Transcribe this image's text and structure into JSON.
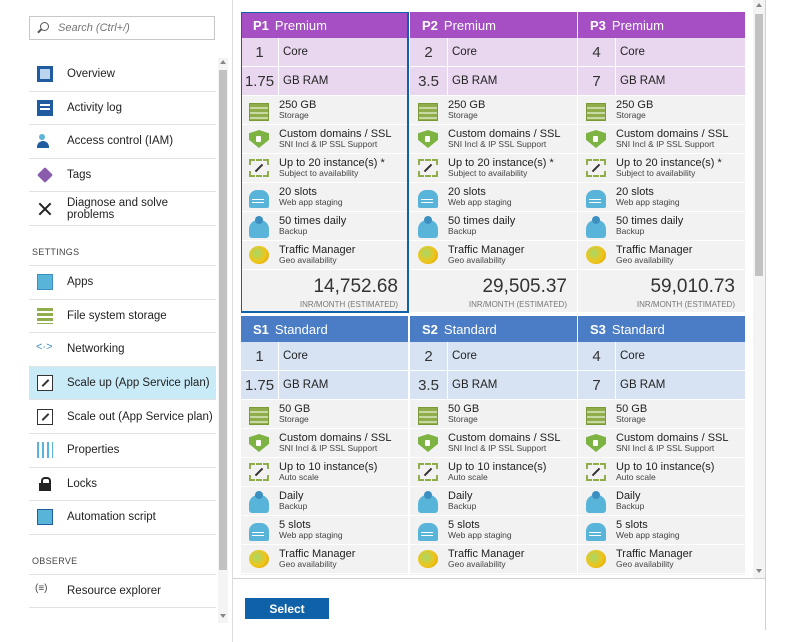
{
  "search": {
    "placeholder": "Search (Ctrl+/)"
  },
  "menu": {
    "items_top": [
      {
        "label": "Overview",
        "icon": "overview-icon"
      },
      {
        "label": "Activity log",
        "icon": "activity-log-icon"
      },
      {
        "label": "Access control (IAM)",
        "icon": "access-control-icon"
      },
      {
        "label": "Tags",
        "icon": "tag-icon"
      },
      {
        "label": "Diagnose and solve problems",
        "icon": "wrench-icon"
      }
    ],
    "settings_label": "SETTINGS",
    "items_settings": [
      {
        "label": "Apps",
        "icon": "apps-icon"
      },
      {
        "label": "File system storage",
        "icon": "storage-icon"
      },
      {
        "label": "Networking",
        "icon": "networking-icon"
      },
      {
        "label": "Scale up (App Service plan)",
        "icon": "scale-up-icon",
        "active": true
      },
      {
        "label": "Scale out (App Service plan)",
        "icon": "scale-out-icon"
      },
      {
        "label": "Properties",
        "icon": "properties-icon"
      },
      {
        "label": "Locks",
        "icon": "lock-icon"
      },
      {
        "label": "Automation script",
        "icon": "automation-icon"
      }
    ],
    "observe_label": "OBSERVE",
    "items_observe": [
      {
        "label": "Resource explorer",
        "icon": "resource-explorer-icon"
      }
    ]
  },
  "plans": [
    {
      "code": "P1",
      "tier": "Premium",
      "selected": true,
      "cores": "1",
      "cores_unit": "Core",
      "ram": "1.75",
      "ram_unit": "GB RAM",
      "features": [
        {
          "t1": "250 GB",
          "t2": "Storage",
          "icon": "storage"
        },
        {
          "t1": "Custom domains / SSL",
          "t2": "SNI Incl & IP SSL Support",
          "icon": "shield"
        },
        {
          "t1": "Up to 20 instance(s) *",
          "t2": "Subject to availability",
          "icon": "scale"
        },
        {
          "t1": "20 slots",
          "t2": "Web app staging",
          "icon": "slots"
        },
        {
          "t1": "50 times daily",
          "t2": "Backup",
          "icon": "backup"
        },
        {
          "t1": "Traffic Manager",
          "t2": "Geo availability",
          "icon": "globe"
        }
      ],
      "price": "14,752.68",
      "price_unit": "INR/MONTH (ESTIMATED)"
    },
    {
      "code": "P2",
      "tier": "Premium",
      "selected": false,
      "cores": "2",
      "cores_unit": "Core",
      "ram": "3.5",
      "ram_unit": "GB RAM",
      "features": [
        {
          "t1": "250 GB",
          "t2": "Storage",
          "icon": "storage"
        },
        {
          "t1": "Custom domains / SSL",
          "t2": "SNI Incl & IP SSL Support",
          "icon": "shield"
        },
        {
          "t1": "Up to 20 instance(s) *",
          "t2": "Subject to availability",
          "icon": "scale"
        },
        {
          "t1": "20 slots",
          "t2": "Web app staging",
          "icon": "slots"
        },
        {
          "t1": "50 times daily",
          "t2": "Backup",
          "icon": "backup"
        },
        {
          "t1": "Traffic Manager",
          "t2": "Geo availability",
          "icon": "globe"
        }
      ],
      "price": "29,505.37",
      "price_unit": "INR/MONTH (ESTIMATED)"
    },
    {
      "code": "P3",
      "tier": "Premium",
      "selected": false,
      "cores": "4",
      "cores_unit": "Core",
      "ram": "7",
      "ram_unit": "GB RAM",
      "features": [
        {
          "t1": "250 GB",
          "t2": "Storage",
          "icon": "storage"
        },
        {
          "t1": "Custom domains / SSL",
          "t2": "SNI Incl & IP SSL Support",
          "icon": "shield"
        },
        {
          "t1": "Up to 20 instance(s) *",
          "t2": "Subject to availability",
          "icon": "scale"
        },
        {
          "t1": "20 slots",
          "t2": "Web app staging",
          "icon": "slots"
        },
        {
          "t1": "50 times daily",
          "t2": "Backup",
          "icon": "backup"
        },
        {
          "t1": "Traffic Manager",
          "t2": "Geo availability",
          "icon": "globe"
        }
      ],
      "price": "59,010.73",
      "price_unit": "INR/MONTH (ESTIMATED)"
    },
    {
      "code": "S1",
      "tier": "Standard",
      "selected": false,
      "cores": "1",
      "cores_unit": "Core",
      "ram": "1.75",
      "ram_unit": "GB RAM",
      "features": [
        {
          "t1": "50 GB",
          "t2": "Storage",
          "icon": "storage"
        },
        {
          "t1": "Custom domains / SSL",
          "t2": "SNI Incl & IP SSL Support",
          "icon": "shield"
        },
        {
          "t1": "Up to 10 instance(s)",
          "t2": "Auto scale",
          "icon": "scale"
        },
        {
          "t1": "Daily",
          "t2": "Backup",
          "icon": "backup"
        },
        {
          "t1": "5 slots",
          "t2": "Web app staging",
          "icon": "slots"
        },
        {
          "t1": "Traffic Manager",
          "t2": "Geo availability",
          "icon": "globe"
        }
      ],
      "price": "",
      "price_unit": ""
    },
    {
      "code": "S2",
      "tier": "Standard",
      "selected": false,
      "cores": "2",
      "cores_unit": "Core",
      "ram": "3.5",
      "ram_unit": "GB RAM",
      "features": [
        {
          "t1": "50 GB",
          "t2": "Storage",
          "icon": "storage"
        },
        {
          "t1": "Custom domains / SSL",
          "t2": "SNI Incl & IP SSL Support",
          "icon": "shield"
        },
        {
          "t1": "Up to 10 instance(s)",
          "t2": "Auto scale",
          "icon": "scale"
        },
        {
          "t1": "Daily",
          "t2": "Backup",
          "icon": "backup"
        },
        {
          "t1": "5 slots",
          "t2": "Web app staging",
          "icon": "slots"
        },
        {
          "t1": "Traffic Manager",
          "t2": "Geo availability",
          "icon": "globe"
        }
      ],
      "price": "",
      "price_unit": ""
    },
    {
      "code": "S3",
      "tier": "Standard",
      "selected": false,
      "cores": "4",
      "cores_unit": "Core",
      "ram": "7",
      "ram_unit": "GB RAM",
      "features": [
        {
          "t1": "50 GB",
          "t2": "Storage",
          "icon": "storage"
        },
        {
          "t1": "Custom domains / SSL",
          "t2": "SNI Incl & IP SSL Support",
          "icon": "shield"
        },
        {
          "t1": "Up to 10 instance(s)",
          "t2": "Auto scale",
          "icon": "scale"
        },
        {
          "t1": "Daily",
          "t2": "Backup",
          "icon": "backup"
        },
        {
          "t1": "5 slots",
          "t2": "Web app staging",
          "icon": "slots"
        },
        {
          "t1": "Traffic Manager",
          "t2": "Geo availability",
          "icon": "globe"
        }
      ],
      "price": "",
      "price_unit": ""
    }
  ],
  "footer": {
    "select_label": "Select"
  }
}
